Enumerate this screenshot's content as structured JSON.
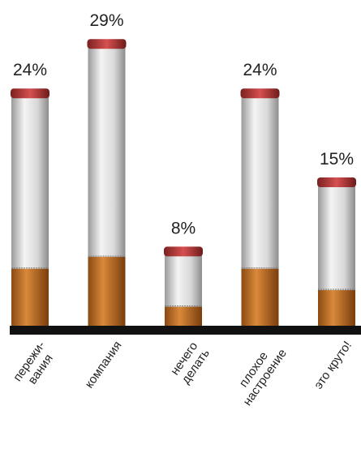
{
  "chart_data": {
    "type": "bar",
    "categories": [
      "пережи-\nвания",
      "компания",
      "нечего\nделать",
      "плохое\nнастроение",
      "это круто!"
    ],
    "values": [
      24,
      29,
      8,
      24,
      15
    ],
    "value_labels": [
      "24%",
      "29%",
      "8%",
      "24%",
      "15%"
    ]
  }
}
